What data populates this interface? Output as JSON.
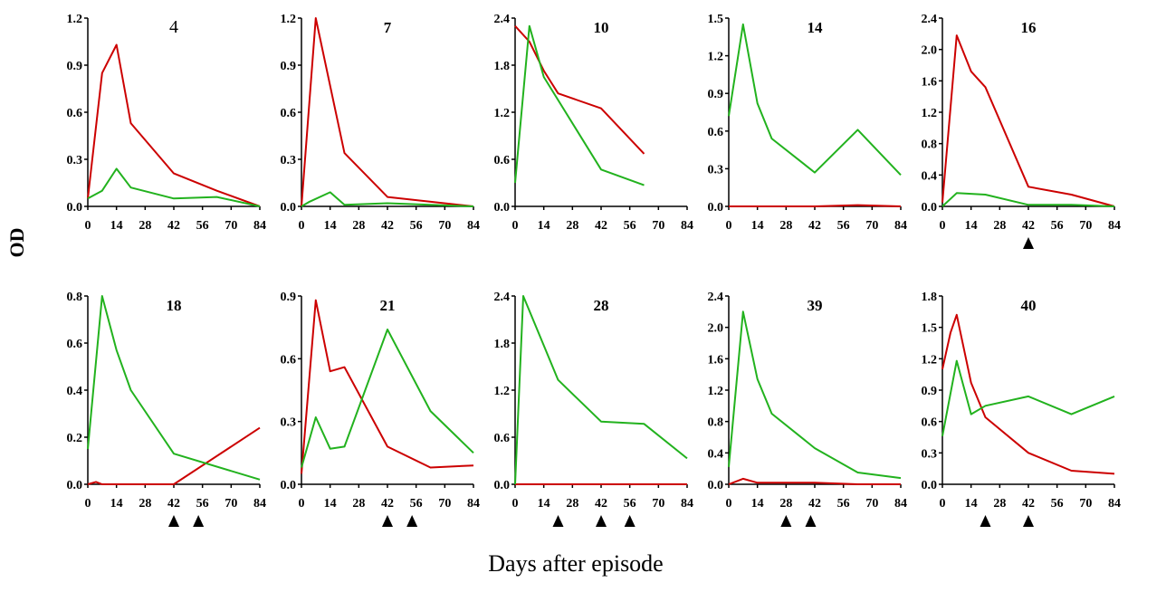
{
  "figure": {
    "ylabel": "OD",
    "xlabel": "Days after episode"
  },
  "colors": {
    "red": "#cc0000",
    "green": "#22b21e"
  },
  "chart_data": [
    {
      "type": "line",
      "title": "4",
      "ylim": [
        0,
        1.2
      ],
      "yticks": [
        "0.0",
        "0.3",
        "0.6",
        "0.9",
        "1.2"
      ],
      "xticks": [
        0,
        14,
        28,
        42,
        56,
        70,
        84
      ],
      "series": [
        {
          "color": "red",
          "x": [
            0,
            7,
            14,
            21,
            42,
            63,
            84
          ],
          "y": [
            0.05,
            0.85,
            1.03,
            0.53,
            0.21,
            0.1,
            0.0
          ]
        },
        {
          "color": "green",
          "x": [
            0,
            7,
            14,
            21,
            42,
            63,
            84
          ],
          "y": [
            0.05,
            0.1,
            0.24,
            0.12,
            0.05,
            0.06,
            0.0
          ]
        }
      ],
      "arrows": []
    },
    {
      "type": "line",
      "title": "7",
      "ylim": [
        0,
        1.2
      ],
      "yticks": [
        "0.0",
        "0.3",
        "0.6",
        "0.9",
        "1.2"
      ],
      "xticks": [
        0,
        14,
        28,
        42,
        56,
        70,
        84
      ],
      "series": [
        {
          "color": "red",
          "x": [
            0,
            7,
            21,
            42,
            84
          ],
          "y": [
            0.0,
            1.2,
            0.34,
            0.06,
            0.0
          ]
        },
        {
          "color": "green",
          "x": [
            0,
            4,
            14,
            21,
            42,
            84
          ],
          "y": [
            0.0,
            0.03,
            0.09,
            0.01,
            0.02,
            0.0
          ]
        }
      ],
      "arrows": []
    },
    {
      "type": "line",
      "title": "10",
      "ylim": [
        0,
        2.4
      ],
      "yticks": [
        "0.0",
        "0.6",
        "1.2",
        "1.8",
        "2.4"
      ],
      "xticks": [
        0,
        14,
        28,
        42,
        56,
        70,
        84
      ],
      "series": [
        {
          "color": "red",
          "x": [
            0,
            7,
            14,
            21,
            42,
            63
          ],
          "y": [
            2.3,
            2.1,
            1.73,
            1.44,
            1.25,
            0.67
          ]
        },
        {
          "color": "green",
          "x": [
            0,
            7,
            14,
            42,
            63
          ],
          "y": [
            0.3,
            2.3,
            1.65,
            0.47,
            0.27
          ]
        }
      ],
      "arrows": []
    },
    {
      "type": "line",
      "title": "14",
      "ylim": [
        0,
        1.5
      ],
      "yticks": [
        "0.0",
        "0.3",
        "0.6",
        "0.9",
        "1.2",
        "1.5"
      ],
      "xticks": [
        0,
        14,
        28,
        42,
        56,
        70,
        84
      ],
      "series": [
        {
          "color": "red",
          "x": [
            0,
            42,
            63,
            84
          ],
          "y": [
            0.0,
            0.0,
            0.01,
            0.0
          ]
        },
        {
          "color": "green",
          "x": [
            0,
            7,
            14,
            21,
            42,
            63,
            84
          ],
          "y": [
            0.72,
            1.45,
            0.82,
            0.54,
            0.27,
            0.61,
            0.25
          ]
        }
      ],
      "arrows": []
    },
    {
      "type": "line",
      "title": "16",
      "ylim": [
        0,
        2.4
      ],
      "yticks": [
        "0.0",
        "0.4",
        "0.8",
        "1.2",
        "1.6",
        "2.0",
        "2.4"
      ],
      "xticks": [
        0,
        14,
        28,
        42,
        56,
        70,
        84
      ],
      "series": [
        {
          "color": "red",
          "x": [
            0,
            7,
            14,
            21,
            42,
            63,
            84
          ],
          "y": [
            0.05,
            2.18,
            1.72,
            1.52,
            0.25,
            0.15,
            0.0
          ]
        },
        {
          "color": "green",
          "x": [
            0,
            7,
            14,
            21,
            42,
            63,
            84
          ],
          "y": [
            0.0,
            0.17,
            0.16,
            0.15,
            0.02,
            0.02,
            0.0
          ]
        }
      ],
      "arrows": [
        42
      ]
    },
    {
      "type": "line",
      "title": "18",
      "ylim": [
        0,
        0.8
      ],
      "yticks": [
        "0.0",
        "0.2",
        "0.4",
        "0.6",
        "0.8"
      ],
      "xticks": [
        0,
        14,
        28,
        42,
        56,
        70,
        84
      ],
      "series": [
        {
          "color": "red",
          "x": [
            0,
            4,
            7,
            42,
            84
          ],
          "y": [
            0.0,
            0.01,
            0.0,
            0.0,
            0.24
          ]
        },
        {
          "color": "green",
          "x": [
            0,
            7,
            14,
            21,
            42,
            84
          ],
          "y": [
            0.15,
            0.8,
            0.57,
            0.4,
            0.13,
            0.02
          ]
        }
      ],
      "arrows": [
        42,
        54
      ]
    },
    {
      "type": "line",
      "title": "21",
      "ylim": [
        0,
        0.9
      ],
      "yticks": [
        "0.0",
        "0.3",
        "0.6",
        "0.9"
      ],
      "xticks": [
        0,
        14,
        28,
        42,
        56,
        70,
        84
      ],
      "series": [
        {
          "color": "red",
          "x": [
            0,
            7,
            14,
            21,
            42,
            63,
            84
          ],
          "y": [
            0.05,
            0.88,
            0.54,
            0.56,
            0.18,
            0.08,
            0.09
          ]
        },
        {
          "color": "green",
          "x": [
            0,
            7,
            14,
            21,
            42,
            63,
            84
          ],
          "y": [
            0.08,
            0.32,
            0.17,
            0.18,
            0.74,
            0.35,
            0.15
          ]
        }
      ],
      "arrows": [
        42,
        54
      ]
    },
    {
      "type": "line",
      "title": "28",
      "ylim": [
        0,
        2.4
      ],
      "yticks": [
        "0.0",
        "0.6",
        "1.2",
        "1.8",
        "2.4"
      ],
      "xticks": [
        0,
        14,
        28,
        42,
        56,
        70,
        84
      ],
      "series": [
        {
          "color": "red",
          "x": [
            0,
            84
          ],
          "y": [
            0.0,
            0.0
          ]
        },
        {
          "color": "green",
          "x": [
            0,
            4,
            21,
            42,
            63,
            84
          ],
          "y": [
            0.0,
            2.4,
            1.33,
            0.8,
            0.77,
            0.33
          ]
        }
      ],
      "arrows": [
        21,
        42,
        56
      ]
    },
    {
      "type": "line",
      "title": "39",
      "ylim": [
        0,
        2.4
      ],
      "yticks": [
        "0.0",
        "0.4",
        "0.8",
        "1.2",
        "1.6",
        "2.0",
        "2.4"
      ],
      "xticks": [
        0,
        14,
        28,
        42,
        56,
        70,
        84
      ],
      "series": [
        {
          "color": "red",
          "x": [
            0,
            7,
            14,
            42,
            63,
            84
          ],
          "y": [
            0.0,
            0.07,
            0.02,
            0.02,
            0.0,
            0.0
          ]
        },
        {
          "color": "green",
          "x": [
            0,
            7,
            14,
            21,
            42,
            63,
            84
          ],
          "y": [
            0.22,
            2.2,
            1.34,
            0.9,
            0.46,
            0.15,
            0.08
          ]
        }
      ],
      "arrows": [
        28,
        40
      ]
    },
    {
      "type": "line",
      "title": "40",
      "ylim": [
        0,
        1.8
      ],
      "yticks": [
        "0.0",
        "0.3",
        "0.6",
        "0.9",
        "1.2",
        "1.5",
        "1.8"
      ],
      "xticks": [
        0,
        14,
        28,
        42,
        56,
        70,
        84
      ],
      "series": [
        {
          "color": "red",
          "x": [
            0,
            4,
            7,
            14,
            21,
            42,
            63,
            84
          ],
          "y": [
            1.1,
            1.45,
            1.62,
            0.97,
            0.64,
            0.3,
            0.13,
            0.1
          ]
        },
        {
          "color": "green",
          "x": [
            0,
            7,
            14,
            21,
            42,
            63,
            84
          ],
          "y": [
            0.46,
            1.18,
            0.67,
            0.75,
            0.84,
            0.67,
            0.84
          ]
        }
      ],
      "arrows": [
        21,
        42
      ]
    }
  ]
}
